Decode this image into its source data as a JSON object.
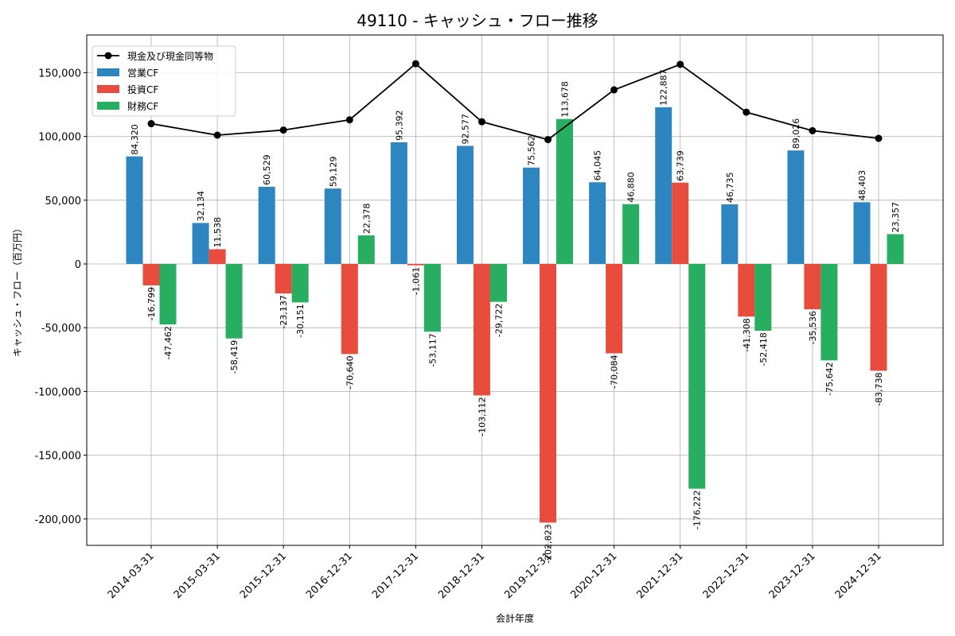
{
  "chart_data": {
    "type": "bar",
    "title": "49110 - キャッシュ・フロー推移",
    "xlabel": "会計年度",
    "ylabel": "キャッシュ・フロー（百万円）",
    "ylim": [
      -220000,
      175000
    ],
    "yticks": [
      150000,
      100000,
      50000,
      0,
      -50000,
      -100000,
      -150000,
      -200000
    ],
    "ytick_labels": [
      "150,000",
      "100,000",
      "50,000",
      "0",
      "-50,000",
      "-100,000",
      "-150,000",
      "-200,000"
    ],
    "grid": true,
    "legend_position": "top-left",
    "categories": [
      "2014-03-31",
      "2015-03-31",
      "2015-12-31",
      "2016-12-31",
      "2017-12-31",
      "2018-12-31",
      "2019-12-31",
      "2020-12-31",
      "2021-12-31",
      "2022-12-31",
      "2023-12-31",
      "2024-12-31"
    ],
    "series": [
      {
        "name": "営業CF",
        "color": "#2e86c1",
        "values": [
          84320,
          32134,
          60529,
          59129,
          95392,
          92577,
          75562,
          64045,
          122887,
          46735,
          89026,
          48403
        ],
        "labels": [
          "84,320",
          "32,134",
          "60,529",
          "59,129",
          "95,392",
          "92,577",
          "75,562",
          "64,045",
          "122,887",
          "46,735",
          "89,026",
          "48,403"
        ]
      },
      {
        "name": "投資CF",
        "color": "#e74c3c",
        "values": [
          -16799,
          11538,
          -23137,
          -70640,
          -1061,
          -103112,
          -202823,
          -70084,
          63739,
          -41308,
          -35536,
          -83738
        ],
        "labels": [
          "-16,799",
          "11,538",
          "-23,137",
          "-70,640",
          "-1,061",
          "-103,112",
          "-202,823",
          "-70,084",
          "63,739",
          "-41,308",
          "-35,536",
          "-83,738"
        ]
      },
      {
        "name": "財務CF",
        "color": "#27ae60",
        "values": [
          -47462,
          -58419,
          -30151,
          22378,
          -53117,
          -29722,
          113678,
          46880,
          -176222,
          -52418,
          -75642,
          23357
        ],
        "labels": [
          "-47,462",
          "-58,419",
          "-30,151",
          "22,378",
          "-53,117",
          "-29,722",
          "113,678",
          "46,880",
          "-176,222",
          "-52,418",
          "-75,642",
          "23,357"
        ]
      }
    ],
    "line": {
      "name": "現金及び現金同等物",
      "color": "#000000",
      "values": [
        110000,
        101000,
        105000,
        113000,
        157000,
        111500,
        97500,
        136500,
        156500,
        119000,
        104500,
        98500
      ]
    }
  }
}
